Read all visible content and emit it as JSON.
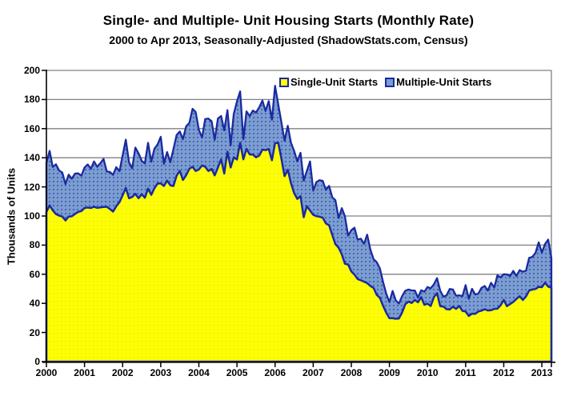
{
  "title": "Single- and Multiple- Unit Housing Starts (Monthly Rate)",
  "subtitle": "2000 to Apr 2013, Seasonally-Adjusted (ShadowStats.com, Census)",
  "y_axis": {
    "title": "Thousands of Units",
    "ticks": [
      0,
      20,
      40,
      60,
      80,
      100,
      120,
      140,
      160,
      180,
      200
    ],
    "max": 200
  },
  "x_axis": {
    "tick_labels": [
      "2000",
      "2001",
      "2002",
      "2003",
      "2004",
      "2005",
      "2006",
      "2007",
      "2008",
      "2009",
      "2010",
      "2011",
      "2012",
      "2013"
    ],
    "months_per_tick": 12
  },
  "legend": {
    "items": [
      {
        "label": "Single-Unit Starts",
        "color": "#FFFF00"
      },
      {
        "label": "Multiple-Unit Starts",
        "color": "#7B9DD0"
      }
    ]
  },
  "colors": {
    "single_fill": "#FFFF00",
    "single_dot": "#DADA45",
    "multiple_fill": "#7B9DD0",
    "multiple_dot": "#2A3F9E",
    "area_outline": "#1A2AA0",
    "gridline": "#808080",
    "axis": "#000000"
  },
  "chart_data": {
    "type": "area",
    "stacked": true,
    "title": "Single- and Multiple- Unit Housing Starts (Monthly Rate)",
    "subtitle": "2000 to Apr 2013, Seasonally-Adjusted (ShadowStats.com, Census)",
    "xlabel": "",
    "ylabel": "Thousands of Units",
    "ylim": [
      0,
      200
    ],
    "grid": true,
    "legend_position": "top-inside",
    "x_start": "2000-01",
    "x_end": "2013-04",
    "x_year_labels": [
      "2000",
      "2001",
      "2002",
      "2003",
      "2004",
      "2005",
      "2006",
      "2007",
      "2008",
      "2009",
      "2010",
      "2011",
      "2012",
      "2013"
    ],
    "series": [
      {
        "name": "Single-Unit Starts",
        "color": "#FFFF00",
        "values": [
          102.7,
          107.3,
          103.9,
          101.3,
          100.3,
          99.6,
          96.9,
          99.6,
          99.8,
          101.4,
          102.8,
          103.4,
          105.5,
          105.8,
          105.5,
          106.3,
          105.6,
          105.9,
          106.2,
          106.3,
          104.8,
          103.0,
          106.7,
          109.5,
          114.2,
          119.3,
          112.2,
          113.1,
          115.2,
          112.2,
          115.0,
          112.5,
          118.8,
          114.5,
          119.0,
          122.3,
          122.4,
          120.6,
          124.3,
          121.1,
          120.6,
          127.7,
          131.0,
          124.7,
          128.0,
          132.4,
          133.8,
          130.9,
          131.9,
          134.8,
          133.8,
          130.9,
          132.3,
          127.9,
          133.3,
          138.9,
          129.2,
          144.2,
          133.3,
          140.3,
          138.8,
          150.3,
          138.9,
          146.1,
          142.3,
          142.2,
          140.3,
          141.5,
          145.6,
          145.2,
          146.0,
          138.3,
          150.0,
          150.3,
          139.2,
          127.4,
          131.7,
          122.6,
          115.8,
          111.7,
          113.6,
          99.2,
          106.8,
          103.8,
          100.8,
          99.9,
          99.5,
          98.8,
          94.9,
          93.7,
          86.9,
          80.7,
          78.3,
          73.7,
          67.2,
          66.7,
          61.9,
          59.8,
          56.7,
          55.8,
          54.9,
          53.9,
          52.0,
          50.6,
          45.9,
          43.8,
          38.3,
          33.7,
          29.8,
          29.8,
          29.4,
          29.6,
          33.8,
          39.4,
          41.2,
          40.3,
          42.3,
          40.7,
          44.3,
          39.0,
          39.8,
          38.2,
          44.3,
          47.0,
          38.1,
          37.8,
          36.0,
          35.8,
          37.7,
          36.2,
          38.2,
          34.8,
          34.4,
          31.3,
          32.9,
          32.8,
          34.4,
          35.0,
          36.0,
          35.1,
          35.3,
          36.2,
          36.3,
          38.6,
          42.3,
          38.1,
          39.5,
          41.0,
          43.0,
          44.9,
          42.3,
          44.8,
          48.8,
          49.5,
          49.9,
          51.3,
          51.1,
          54.2,
          51.5,
          50.8
        ]
      },
      {
        "name": "Multiple-Unit Starts",
        "color": "#7B9DD0",
        "values": [
          33.7,
          37.4,
          29.8,
          34.2,
          30.9,
          30.3,
          25.0,
          28.8,
          25.8,
          27.7,
          26.5,
          24.3,
          27.8,
          29.6,
          27.0,
          31.2,
          28.2,
          30.4,
          33.0,
          24.3,
          25.4,
          25.3,
          26.8,
          21.2,
          27.3,
          33.1,
          24.7,
          19.6,
          31.8,
          30.9,
          22.9,
          23.6,
          31.5,
          22.8,
          27.1,
          26.8,
          32.0,
          15.2,
          19.6,
          15.8,
          25.3,
          27.9,
          27.1,
          28.1,
          33.6,
          31.5,
          39.8,
          40.5,
          27.3,
          19.1,
          32.8,
          36.0,
          32.8,
          24.4,
          33.6,
          29.8,
          29.6,
          28.5,
          15.2,
          29.8,
          39.8,
          35.3,
          13.8,
          25.7,
          26.4,
          30.2,
          30.8,
          33.1,
          33.7,
          26.9,
          32.9,
          27.8,
          39.4,
          26.3,
          24.9,
          24.3,
          30.2,
          27.6,
          29.0,
          25.8,
          29.8,
          25.1,
          24.1,
          33.7,
          16.6,
          23.4,
          25.1,
          25.3,
          23.0,
          27.0,
          25.9,
          30.2,
          20.3,
          31.7,
          32.6,
          19.8,
          28.4,
          32.2,
          27.1,
          28.6,
          26.0,
          33.3,
          24.9,
          19.8,
          22.4,
          20.2,
          16.3,
          13.0,
          11.1,
          18.7,
          12.7,
          10.3,
          11.2,
          9.3,
          8.3,
          8.6,
          6.5,
          3.3,
          4.7,
          9.0,
          11.4,
          12.2,
          8.8,
          10.3,
          10.5,
          6.8,
          9.5,
          14.1,
          11.8,
          9.1,
          7.3,
          10.2,
          18.1,
          11.8,
          17.1,
          13.3,
          12.3,
          15.7,
          15.9,
          13.7,
          18.8,
          14.7,
          22.9,
          19.3,
          17.7,
          21.8,
          19.3,
          21.3,
          15.8,
          17.9,
          19.4,
          17.7,
          22.4,
          22.4,
          24.9,
          30.6,
          23.8,
          26.6,
          32.3,
          20.3
        ]
      }
    ]
  }
}
